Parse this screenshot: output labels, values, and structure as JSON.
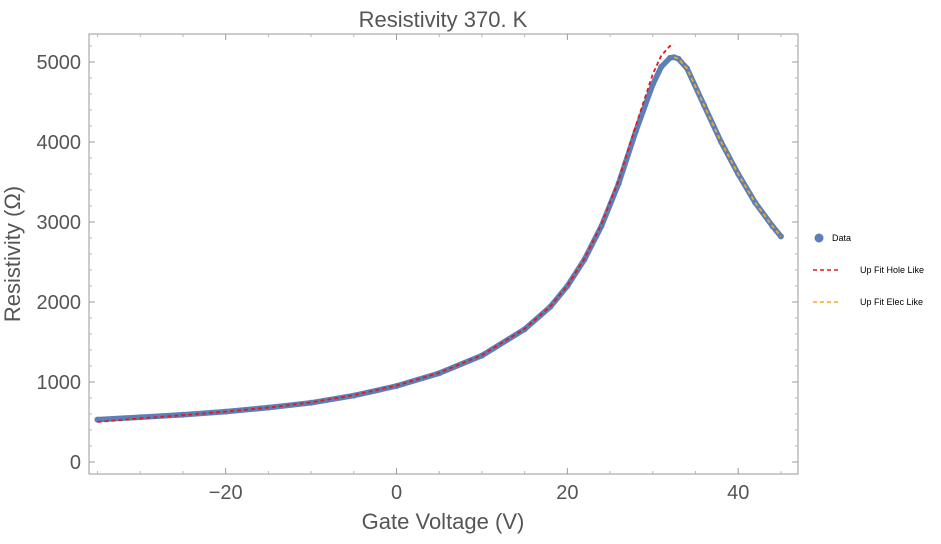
{
  "chart_data": {
    "type": "line",
    "title": "Resistivity  370. K",
    "xlabel": "Gate Voltage (V)",
    "ylabel": "Resistivity (Ω)",
    "xlim": [
      -36,
      47
    ],
    "ylim": [
      -150,
      5350
    ],
    "xticks": [
      -20,
      0,
      20,
      40
    ],
    "xtick_labels": [
      "−20",
      "0",
      "20",
      "40"
    ],
    "yticks": [
      0,
      1000,
      2000,
      3000,
      4000,
      5000
    ],
    "ytick_labels": [
      "0",
      "1000",
      "2000",
      "3000",
      "4000",
      "5000"
    ],
    "grid": false,
    "legend_position": "right",
    "series": [
      {
        "name": "Data",
        "style": "points",
        "color": "#5b7fb6",
        "x": [
          -35,
          -30,
          -25,
          -20,
          -15,
          -10,
          -5,
          0,
          5,
          10,
          15,
          18,
          20,
          22,
          24,
          26,
          28,
          30,
          31,
          32,
          32.5,
          33,
          34,
          36,
          38,
          40,
          42,
          44,
          45
        ],
        "y": [
          530,
          560,
          590,
          630,
          680,
          740,
          830,
          950,
          1110,
          1330,
          1660,
          1940,
          2200,
          2530,
          2950,
          3480,
          4130,
          4720,
          4940,
          5050,
          5060,
          5040,
          4920,
          4460,
          4000,
          3600,
          3240,
          2950,
          2820
        ]
      },
      {
        "name": "Up Fit Hole Like",
        "style": "dashed",
        "color": "#e31a1c",
        "x": [
          -35,
          -30,
          -25,
          -20,
          -15,
          -10,
          -5,
          0,
          5,
          10,
          15,
          18,
          20,
          22,
          24,
          26,
          28,
          30,
          31,
          32,
          32.5
        ],
        "y": [
          500,
          545,
          585,
          630,
          680,
          745,
          835,
          955,
          1115,
          1335,
          1665,
          1945,
          2205,
          2540,
          2970,
          3520,
          4200,
          4850,
          5080,
          5200,
          5210
        ]
      },
      {
        "name": "Up Fit Elec Like",
        "style": "dashed",
        "color": "#f5a623",
        "x": [
          32.5,
          33,
          34,
          36,
          38,
          40,
          42,
          44,
          45
        ],
        "y": [
          5060,
          5040,
          4920,
          4460,
          4000,
          3600,
          3240,
          2950,
          2820
        ]
      }
    ]
  }
}
